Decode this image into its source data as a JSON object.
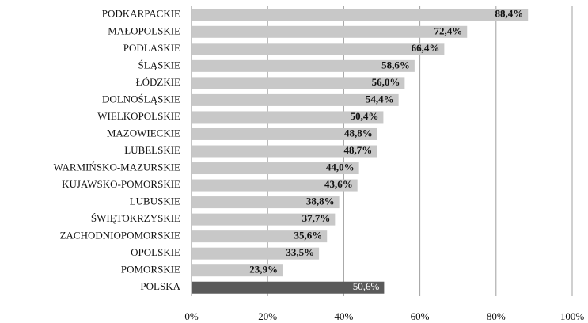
{
  "chart_data": {
    "type": "hbar",
    "categories": [
      "PODKARPACKIE",
      "MAŁOPOLSKIE",
      "PODLASKIE",
      "ŚLĄSKIE",
      "ŁÓDZKIE",
      "DOLNOŚLĄSKIE",
      "WIELKOPOLSKIE",
      "MAZOWIECKIE",
      "LUBELSKIE",
      "WARMIŃSKO-MAZURSKIE",
      "KUJAWSKO-POMORSKIE",
      "LUBUSKIE",
      "ŚWIĘTOKRZYSKIE",
      "ZACHODNIOPOMORSKIE",
      "OPOLSKIE",
      "POMORSKIE",
      "POLSKA"
    ],
    "values": [
      88.4,
      72.4,
      66.4,
      58.6,
      56.0,
      54.4,
      50.4,
      48.8,
      48.7,
      44.0,
      43.6,
      38.8,
      37.7,
      35.6,
      33.5,
      23.9,
      50.6
    ],
    "value_labels": [
      "88,4%",
      "72,4%",
      "66,4%",
      "58,6%",
      "56,0%",
      "54,4%",
      "50,4%",
      "48,8%",
      "48,7%",
      "44,0%",
      "43,6%",
      "38,8%",
      "37,7%",
      "35,6%",
      "33,5%",
      "23,9%",
      "50,6%"
    ],
    "colors": [
      "#c8c8c8",
      "#c8c8c8",
      "#c8c8c8",
      "#c8c8c8",
      "#c8c8c8",
      "#c8c8c8",
      "#c8c8c8",
      "#c8c8c8",
      "#c8c8c8",
      "#c8c8c8",
      "#c8c8c8",
      "#c8c8c8",
      "#c8c8c8",
      "#c8c8c8",
      "#c8c8c8",
      "#c8c8c8",
      "#5a5a5a"
    ],
    "xlim": [
      0,
      100
    ],
    "xticks": [
      {
        "value": 0,
        "label": "0%"
      },
      {
        "value": 20,
        "label": "20%"
      },
      {
        "value": 40,
        "label": "40%"
      },
      {
        "value": 60,
        "label": "60%"
      },
      {
        "value": 80,
        "label": "80%"
      },
      {
        "value": 100,
        "label": "100%"
      }
    ],
    "grid": true
  }
}
